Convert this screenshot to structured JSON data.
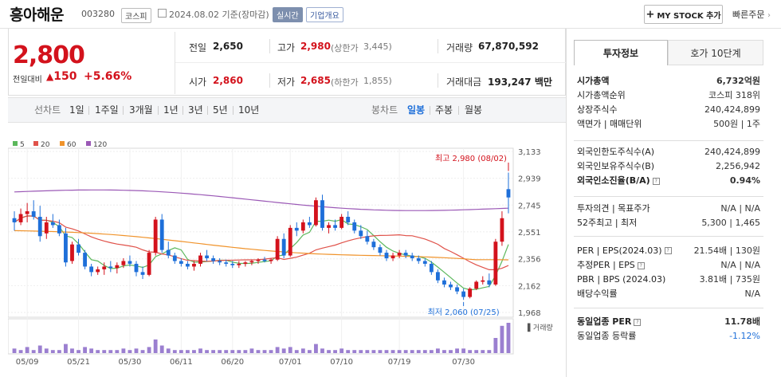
{
  "stock": {
    "name": "흥아해운",
    "code": "003280",
    "market": "코스피",
    "date": "2024.08.02 기준(장마감)",
    "realtime": "실시간",
    "overview": "기업개요"
  },
  "header": {
    "mystock": "MY STOCK 추가",
    "quick": "빠른주문"
  },
  "price": {
    "current": "2,800",
    "change_label": "전일대비",
    "change": "150",
    "change_pct": "+5.66%"
  },
  "quote": {
    "prev_label": "전일",
    "prev": "2,650",
    "high_label": "고가",
    "high": "2,980",
    "upper_label": "(상한가",
    "upper": "3,445)",
    "volume_label": "거래량",
    "volume": "67,870,592",
    "open_label": "시가",
    "open": "2,860",
    "low_label": "저가",
    "low": "2,685",
    "lower_label": "(하한가",
    "lower": "1,855)",
    "amount_label": "거래대금",
    "amount": "193,247 백만"
  },
  "period": {
    "line_label": "선차트",
    "line_items": [
      "1일",
      "1주일",
      "3개월",
      "1년",
      "3년",
      "5년",
      "10년"
    ],
    "candle_label": "봉차트",
    "candle_items": [
      "일봉",
      "주봉",
      "월봉"
    ],
    "active": "일봉"
  },
  "colors": {
    "up": "#d3121c",
    "down": "#1e6fd9",
    "ma5": "#5cb85c",
    "ma20": "#e0524a",
    "ma60": "#f0932b",
    "ma120": "#9b59b6",
    "vol": "#9b7fd0"
  },
  "chart_data": {
    "type": "candlestick",
    "legend": [
      "5",
      "20",
      "60",
      "120"
    ],
    "y_ticks": [
      "3,133",
      "2,939",
      "2,745",
      "2,551",
      "2,356",
      "2,162",
      "1,968"
    ],
    "ylim": [
      1968,
      3133
    ],
    "x_ticks": [
      "05/09",
      "05/21",
      "05/30",
      "06/11",
      "06/20",
      "07/01",
      "07/10",
      "07/19",
      "07/30"
    ],
    "high_annotation": "최고 2,980 (08/02)",
    "low_annotation": "최저 2,060 (07/25)",
    "volume_label": "거래량",
    "candles": [
      [
        2650,
        2700,
        2560,
        2620
      ],
      [
        2620,
        2720,
        2600,
        2680
      ],
      [
        2680,
        2760,
        2620,
        2700
      ],
      [
        2700,
        2780,
        2640,
        2660
      ],
      [
        2660,
        2740,
        2480,
        2520
      ],
      [
        2540,
        2660,
        2500,
        2620
      ],
      [
        2620,
        2680,
        2580,
        2600
      ],
      [
        2600,
        2640,
        2520,
        2540
      ],
      [
        2540,
        2580,
        2300,
        2330
      ],
      [
        2340,
        2480,
        2320,
        2460
      ],
      [
        2460,
        2500,
        2380,
        2400
      ],
      [
        2400,
        2420,
        2280,
        2300
      ],
      [
        2300,
        2320,
        2230,
        2260
      ],
      [
        2260,
        2300,
        2240,
        2280
      ],
      [
        2280,
        2330,
        2240,
        2300
      ],
      [
        2300,
        2340,
        2260,
        2290
      ],
      [
        2290,
        2330,
        2250,
        2310
      ],
      [
        2310,
        2360,
        2290,
        2340
      ],
      [
        2340,
        2380,
        2300,
        2320
      ],
      [
        2320,
        2340,
        2230,
        2260
      ],
      [
        2260,
        2300,
        2210,
        2240
      ],
      [
        2240,
        2420,
        2230,
        2400
      ],
      [
        2400,
        2660,
        2380,
        2640
      ],
      [
        2640,
        2680,
        2400,
        2420
      ],
      [
        2420,
        2480,
        2360,
        2380
      ],
      [
        2380,
        2400,
        2320,
        2340
      ],
      [
        2340,
        2360,
        2300,
        2320
      ],
      [
        2320,
        2340,
        2280,
        2300
      ],
      [
        2300,
        2340,
        2270,
        2320
      ],
      [
        2320,
        2400,
        2300,
        2380
      ],
      [
        2380,
        2420,
        2340,
        2360
      ],
      [
        2360,
        2380,
        2320,
        2340
      ],
      [
        2340,
        2360,
        2310,
        2330
      ],
      [
        2330,
        2350,
        2300,
        2320
      ],
      [
        2320,
        2340,
        2290,
        2310
      ],
      [
        2310,
        2340,
        2290,
        2320
      ],
      [
        2320,
        2340,
        2300,
        2330
      ],
      [
        2330,
        2350,
        2310,
        2340
      ],
      [
        2340,
        2360,
        2320,
        2350
      ],
      [
        2350,
        2370,
        2330,
        2340
      ],
      [
        2340,
        2360,
        2320,
        2350
      ],
      [
        2350,
        2520,
        2340,
        2500
      ],
      [
        2500,
        2540,
        2360,
        2380
      ],
      [
        2380,
        2600,
        2370,
        2580
      ],
      [
        2580,
        2620,
        2520,
        2560
      ],
      [
        2560,
        2640,
        2540,
        2620
      ],
      [
        2620,
        2660,
        2580,
        2600
      ],
      [
        2600,
        2800,
        2590,
        2780
      ],
      [
        2780,
        2820,
        2560,
        2580
      ],
      [
        2580,
        2620,
        2540,
        2600
      ],
      [
        2600,
        2640,
        2560,
        2580
      ],
      [
        2580,
        2680,
        2570,
        2660
      ],
      [
        2660,
        2700,
        2600,
        2620
      ],
      [
        2620,
        2640,
        2540,
        2560
      ],
      [
        2560,
        2600,
        2500,
        2520
      ],
      [
        2520,
        2560,
        2460,
        2480
      ],
      [
        2480,
        2500,
        2420,
        2440
      ],
      [
        2440,
        2460,
        2380,
        2400
      ],
      [
        2400,
        2420,
        2340,
        2360
      ],
      [
        2360,
        2400,
        2340,
        2380
      ],
      [
        2380,
        2420,
        2360,
        2400
      ],
      [
        2400,
        2420,
        2360,
        2380
      ],
      [
        2380,
        2400,
        2340,
        2360
      ],
      [
        2360,
        2380,
        2320,
        2340
      ],
      [
        2340,
        2360,
        2300,
        2320
      ],
      [
        2320,
        2340,
        2240,
        2260
      ],
      [
        2260,
        2280,
        2180,
        2200
      ],
      [
        2200,
        2220,
        2150,
        2170
      ],
      [
        2170,
        2190,
        2130,
        2150
      ],
      [
        2150,
        2170,
        2100,
        2120
      ],
      [
        2120,
        2140,
        2060,
        2080
      ],
      [
        2080,
        2150,
        2070,
        2140
      ],
      [
        2140,
        2200,
        2130,
        2190
      ],
      [
        2190,
        2230,
        2170,
        2200
      ],
      [
        2200,
        2250,
        2150,
        2170
      ],
      [
        2170,
        2500,
        2160,
        2480
      ],
      [
        2480,
        2700,
        2450,
        2650
      ],
      [
        2860,
        2980,
        2685,
        2800
      ]
    ],
    "volumes": [
      3,
      2,
      4,
      2,
      5,
      3,
      2,
      2,
      6,
      3,
      2,
      4,
      3,
      2,
      2,
      2,
      2,
      3,
      2,
      3,
      2,
      4,
      9,
      5,
      3,
      2,
      2,
      2,
      2,
      3,
      2,
      2,
      2,
      2,
      2,
      2,
      2,
      3,
      2,
      2,
      2,
      4,
      3,
      4,
      2,
      3,
      2,
      6,
      3,
      2,
      2,
      3,
      2,
      2,
      2,
      2,
      2,
      2,
      2,
      2,
      2,
      2,
      2,
      2,
      2,
      2,
      3,
      2,
      2,
      3,
      3,
      2,
      2,
      2,
      2,
      10,
      18,
      20
    ]
  },
  "side": {
    "tab_info": "투자정보",
    "tab_hoga": "호가 10단계",
    "rows1": [
      {
        "k": "시가총액",
        "v": "6,732억원",
        "bold": true
      },
      {
        "k": "시가총액순위",
        "v": "코스피 318위"
      },
      {
        "k": "상장주식수",
        "v": "240,424,899"
      },
      {
        "k": "액면가 | 매매단위",
        "v": "500원 | 1주"
      }
    ],
    "rows2": [
      {
        "k": "외국인한도주식수(A)",
        "v": "240,424,899"
      },
      {
        "k": "외국인보유주식수(B)",
        "v": "2,256,942"
      },
      {
        "k": "외국인소진율(B/A)",
        "v": "0.94%",
        "bold": true
      }
    ],
    "rows3": [
      {
        "k": "투자의견 | 목표주가",
        "v": "N/A | N/A"
      },
      {
        "k": "52주최고 | 최저",
        "v": "5,300 | 1,465"
      }
    ],
    "rows4": [
      {
        "k": "PER | EPS(2024.03)",
        "v": "21.54배 | 130원"
      },
      {
        "k": "추정PER | EPS",
        "v": "N/A | N/A"
      },
      {
        "k": "PBR | BPS (2024.03)",
        "v": "3.81배 | 735원"
      },
      {
        "k": "배당수익률",
        "v": "N/A"
      }
    ],
    "rows5": [
      {
        "k": "동일업종 PER",
        "v": "11.78배",
        "bold": true
      },
      {
        "k": "동일업종 등락률",
        "v": "-1.12%",
        "blue": true
      }
    ]
  }
}
